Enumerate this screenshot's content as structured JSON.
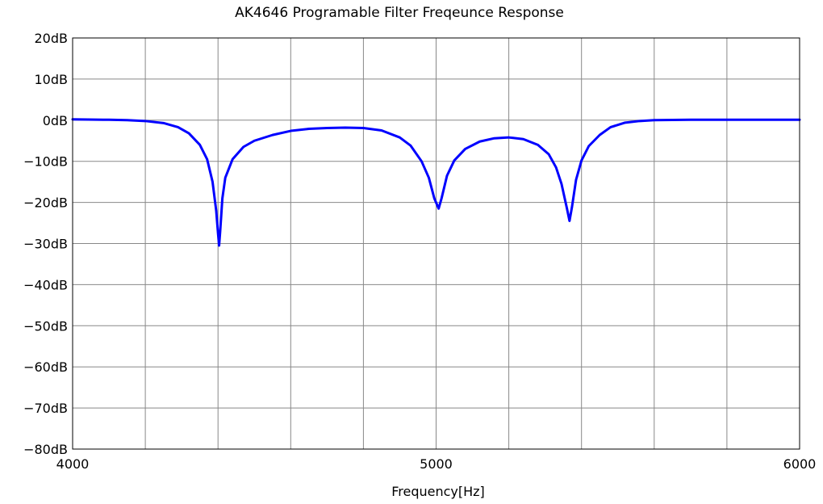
{
  "chart_data": {
    "type": "line",
    "title": "AK4646 Programable Filter Freqeunce Response",
    "xlabel": "Frequency[Hz]",
    "ylabel": "",
    "xlim": [
      4000,
      6000
    ],
    "ylim": [
      -80,
      20
    ],
    "x_ticks": [
      {
        "value": 4000,
        "label": "4000"
      },
      {
        "value": 5000,
        "label": "5000"
      },
      {
        "value": 6000,
        "label": "6000"
      }
    ],
    "y_ticks": [
      {
        "value": 20,
        "label": "20dB"
      },
      {
        "value": 10,
        "label": "10dB"
      },
      {
        "value": 0,
        "label": "0dB"
      },
      {
        "value": -10,
        "label": "-10dB"
      },
      {
        "value": -20,
        "label": "-20dB"
      },
      {
        "value": -30,
        "label": "-30dB"
      },
      {
        "value": -40,
        "label": "-40dB"
      },
      {
        "value": -50,
        "label": "-50dB"
      },
      {
        "value": -60,
        "label": "-60dB"
      },
      {
        "value": -70,
        "label": "-70dB"
      },
      {
        "value": -80,
        "label": "-80dB"
      }
    ],
    "grid": true,
    "grid_x_step": 200,
    "grid_y_step": 10,
    "series": [
      {
        "color": "#0000ff",
        "points": [
          [
            4000,
            0.2
          ],
          [
            4100,
            0.1
          ],
          [
            4150,
            0.0
          ],
          [
            4200,
            -0.2
          ],
          [
            4250,
            -0.7
          ],
          [
            4290,
            -1.7
          ],
          [
            4320,
            -3.2
          ],
          [
            4350,
            -6.0
          ],
          [
            4370,
            -9.5
          ],
          [
            4385,
            -15.0
          ],
          [
            4395,
            -22.0
          ],
          [
            4400,
            -27.5
          ],
          [
            4403,
            -30.5
          ],
          [
            4406,
            -27.0
          ],
          [
            4412,
            -19.0
          ],
          [
            4420,
            -14.0
          ],
          [
            4440,
            -9.5
          ],
          [
            4470,
            -6.5
          ],
          [
            4500,
            -5.0
          ],
          [
            4550,
            -3.6
          ],
          [
            4600,
            -2.6
          ],
          [
            4650,
            -2.1
          ],
          [
            4700,
            -1.9
          ],
          [
            4750,
            -1.8
          ],
          [
            4800,
            -1.9
          ],
          [
            4850,
            -2.5
          ],
          [
            4900,
            -4.2
          ],
          [
            4930,
            -6.2
          ],
          [
            4960,
            -10.0
          ],
          [
            4980,
            -14.0
          ],
          [
            4995,
            -19.0
          ],
          [
            5007,
            -21.5
          ],
          [
            5015,
            -19.0
          ],
          [
            5030,
            -13.5
          ],
          [
            5050,
            -9.8
          ],
          [
            5080,
            -7.0
          ],
          [
            5120,
            -5.2
          ],
          [
            5160,
            -4.4
          ],
          [
            5200,
            -4.2
          ],
          [
            5240,
            -4.6
          ],
          [
            5280,
            -6.0
          ],
          [
            5310,
            -8.3
          ],
          [
            5330,
            -11.5
          ],
          [
            5345,
            -15.5
          ],
          [
            5360,
            -21.5
          ],
          [
            5367,
            -24.5
          ],
          [
            5374,
            -21.0
          ],
          [
            5385,
            -14.5
          ],
          [
            5400,
            -9.8
          ],
          [
            5420,
            -6.3
          ],
          [
            5450,
            -3.6
          ],
          [
            5480,
            -1.7
          ],
          [
            5520,
            -0.6
          ],
          [
            5560,
            -0.2
          ],
          [
            5600,
            0.0
          ],
          [
            5700,
            0.1
          ],
          [
            5800,
            0.1
          ],
          [
            6000,
            0.1
          ]
        ]
      }
    ]
  }
}
